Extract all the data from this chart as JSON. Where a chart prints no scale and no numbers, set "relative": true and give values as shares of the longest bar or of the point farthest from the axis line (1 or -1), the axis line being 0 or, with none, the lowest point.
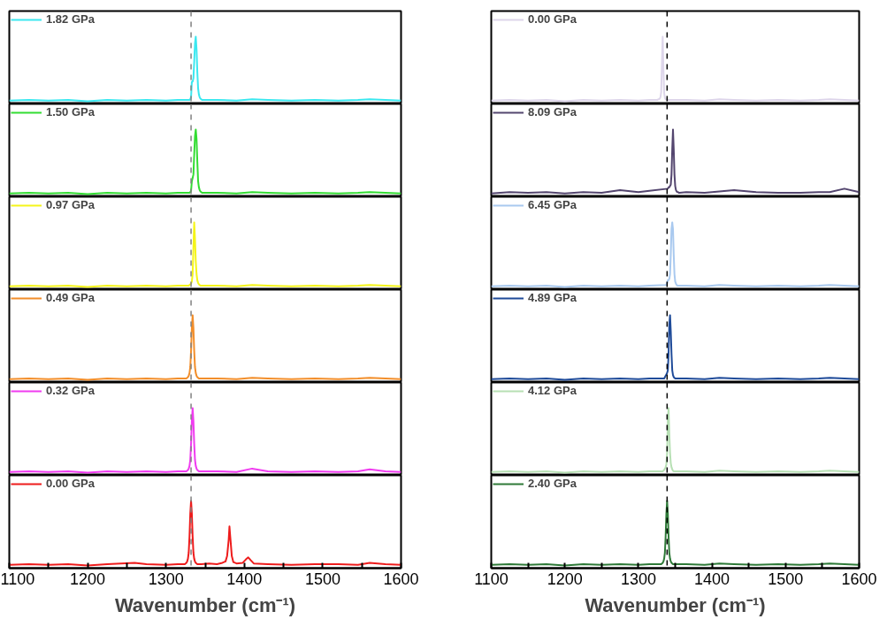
{
  "chart_data": [
    {
      "type": "line",
      "relative": true,
      "xlim": [
        1100,
        1600
      ],
      "tick_labels": false,
      "legend": "top left",
      "line_style": "solid",
      "ref_lines": [
        {
          "axis": "x",
          "value": 1332,
          "color": "#808080",
          "line_style": "dashed"
        }
      ],
      "x": [
        1100,
        1125,
        1150,
        1175,
        1200,
        1225,
        1250,
        1275,
        1300,
        1315,
        1330,
        1331,
        1332,
        1333,
        1334,
        1335,
        1336,
        1337,
        1338,
        1339,
        1340,
        1341,
        1342,
        1343,
        1344,
        1345,
        1346,
        1365,
        1390,
        1410,
        1430,
        1460,
        1490,
        1520,
        1545,
        1560,
        1580,
        1600
      ],
      "series": [
        {
          "name": "1.82 GPa",
          "color": "#3be8f0",
          "values": [
            0.05,
            0.06,
            0.05,
            0.06,
            0.04,
            0.06,
            0.05,
            0.06,
            0.05,
            0.06,
            0.06,
            0.07,
            0.1,
            0.33,
            0.33,
            0.38,
            0.62,
            0.9,
            1.0,
            0.81,
            0.47,
            0.23,
            0.14,
            0.1,
            0.08,
            0.07,
            0.06,
            0.06,
            0.05,
            0.07,
            0.06,
            0.05,
            0.06,
            0.05,
            0.06,
            0.07,
            0.06,
            0.05
          ]
        }
      ]
    },
    {
      "type": "line",
      "relative": true,
      "xlim": [
        1100,
        1600
      ],
      "tick_labels": false,
      "legend": "top left",
      "line_style": "solid",
      "ref_lines": [
        {
          "axis": "x",
          "value": 1332,
          "color": "#808080",
          "line_style": "dashed"
        }
      ],
      "x": [
        1100,
        1125,
        1150,
        1175,
        1200,
        1225,
        1250,
        1275,
        1300,
        1315,
        1330,
        1331,
        1332,
        1333,
        1334,
        1335,
        1336,
        1337,
        1338,
        1339,
        1340,
        1341,
        1342,
        1343,
        1344,
        1345,
        1346,
        1365,
        1390,
        1410,
        1430,
        1460,
        1490,
        1520,
        1545,
        1560,
        1580,
        1600
      ],
      "series": [
        {
          "name": "1.50 GPa",
          "color": "#33dd33",
          "values": [
            0.05,
            0.06,
            0.05,
            0.06,
            0.04,
            0.06,
            0.05,
            0.06,
            0.05,
            0.06,
            0.06,
            0.07,
            0.09,
            0.23,
            0.28,
            0.33,
            0.62,
            0.9,
            1.0,
            0.86,
            0.52,
            0.23,
            0.14,
            0.1,
            0.08,
            0.07,
            0.06,
            0.06,
            0.05,
            0.07,
            0.06,
            0.05,
            0.06,
            0.05,
            0.06,
            0.07,
            0.06,
            0.05
          ]
        }
      ]
    },
    {
      "type": "line",
      "relative": true,
      "xlim": [
        1100,
        1600
      ],
      "tick_labels": false,
      "legend": "top left",
      "line_style": "solid",
      "ref_lines": [
        {
          "axis": "x",
          "value": 1332,
          "color": "#808080",
          "line_style": "dashed"
        }
      ],
      "x": [
        1100,
        1125,
        1150,
        1175,
        1200,
        1225,
        1250,
        1275,
        1300,
        1315,
        1328,
        1329,
        1330,
        1331,
        1332,
        1333,
        1334,
        1335,
        1336,
        1337,
        1338,
        1339,
        1340,
        1341,
        1342,
        1343,
        1344,
        1365,
        1390,
        1410,
        1430,
        1460,
        1490,
        1520,
        1545,
        1560,
        1580,
        1600
      ],
      "series": [
        {
          "name": "0.97 GPa",
          "color": "#f5f51a",
          "values": [
            0.05,
            0.06,
            0.05,
            0.06,
            0.04,
            0.06,
            0.05,
            0.06,
            0.05,
            0.06,
            0.06,
            0.06,
            0.07,
            0.08,
            0.09,
            0.12,
            0.23,
            0.62,
            1.0,
            0.76,
            0.42,
            0.23,
            0.14,
            0.1,
            0.08,
            0.07,
            0.06,
            0.06,
            0.05,
            0.07,
            0.06,
            0.05,
            0.06,
            0.05,
            0.06,
            0.07,
            0.06,
            0.05
          ]
        }
      ]
    },
    {
      "type": "line",
      "relative": true,
      "xlim": [
        1100,
        1600
      ],
      "tick_labels": false,
      "legend": "top left",
      "line_style": "solid",
      "ref_lines": [
        {
          "axis": "x",
          "value": 1332,
          "color": "#808080",
          "line_style": "dashed"
        }
      ],
      "x": [
        1100,
        1125,
        1150,
        1175,
        1200,
        1225,
        1250,
        1275,
        1300,
        1315,
        1326,
        1327,
        1328,
        1329,
        1330,
        1331,
        1332,
        1333,
        1334,
        1335,
        1336,
        1337,
        1338,
        1339,
        1340,
        1341,
        1342,
        1365,
        1390,
        1410,
        1430,
        1460,
        1490,
        1520,
        1545,
        1560,
        1580,
        1600
      ],
      "series": [
        {
          "name": "0.49 GPa",
          "color": "#f28e2b",
          "values": [
            0.05,
            0.06,
            0.05,
            0.06,
            0.04,
            0.06,
            0.05,
            0.06,
            0.05,
            0.06,
            0.06,
            0.07,
            0.08,
            0.1,
            0.14,
            0.23,
            0.47,
            0.81,
            1.0,
            0.81,
            0.47,
            0.23,
            0.14,
            0.1,
            0.08,
            0.07,
            0.06,
            0.06,
            0.05,
            0.07,
            0.06,
            0.05,
            0.06,
            0.05,
            0.06,
            0.07,
            0.06,
            0.05
          ]
        }
      ]
    },
    {
      "type": "line",
      "relative": true,
      "xlim": [
        1100,
        1600
      ],
      "tick_labels": false,
      "legend": "top left",
      "line_style": "solid",
      "ref_lines": [
        {
          "axis": "x",
          "value": 1332,
          "color": "#808080",
          "line_style": "dashed"
        }
      ],
      "x": [
        1100,
        1125,
        1150,
        1175,
        1200,
        1225,
        1250,
        1275,
        1300,
        1315,
        1326,
        1327,
        1328,
        1329,
        1330,
        1331,
        1332,
        1333,
        1334,
        1335,
        1336,
        1337,
        1338,
        1339,
        1340,
        1341,
        1342,
        1365,
        1390,
        1410,
        1430,
        1460,
        1490,
        1520,
        1545,
        1560,
        1580,
        1600
      ],
      "series": [
        {
          "name": "0.32 GPa",
          "color": "#f03cf0",
          "values": [
            0.05,
            0.06,
            0.05,
            0.06,
            0.04,
            0.06,
            0.05,
            0.06,
            0.05,
            0.06,
            0.06,
            0.07,
            0.08,
            0.1,
            0.14,
            0.23,
            0.47,
            0.81,
            1.0,
            0.81,
            0.47,
            0.23,
            0.14,
            0.1,
            0.08,
            0.07,
            0.06,
            0.06,
            0.05,
            0.1,
            0.06,
            0.05,
            0.06,
            0.05,
            0.06,
            0.09,
            0.06,
            0.05
          ]
        }
      ]
    },
    {
      "type": "line",
      "relative": true,
      "xlim": [
        1100,
        1600
      ],
      "tick_labels": "x",
      "legend": "top left",
      "line_style": "solid",
      "xlabel": "Wavenumber (cm⁻¹)",
      "xticks": [
        1100,
        {
          "value": 1150,
          "label": null
        },
        1200,
        {
          "value": 1250,
          "label": null
        },
        1300,
        {
          "value": 1350,
          "label": null
        },
        1400,
        {
          "value": 1450,
          "label": null
        },
        1500,
        {
          "value": 1550,
          "label": null
        },
        1600
      ],
      "ref_lines": [
        {
          "axis": "x",
          "value": 1332,
          "color": "#808080",
          "line_style": "dashed"
        }
      ],
      "x": [
        1100,
        1125,
        1150,
        1175,
        1200,
        1225,
        1260,
        1275,
        1300,
        1315,
        1324,
        1325,
        1326,
        1327,
        1328,
        1329,
        1330,
        1331,
        1332,
        1333,
        1334,
        1335,
        1336,
        1337,
        1338,
        1339,
        1340,
        1345,
        1355,
        1365,
        1372,
        1376,
        1378,
        1380,
        1381,
        1382,
        1384,
        1386,
        1390,
        1398,
        1402,
        1405,
        1408,
        1412,
        1430,
        1460,
        1490,
        1520,
        1545,
        1560,
        1580,
        1600
      ],
      "series": [
        {
          "name": "0.00 GPa",
          "color": "#ee1c1c",
          "values": [
            0.05,
            0.06,
            0.05,
            0.06,
            0.04,
            0.06,
            0.08,
            0.06,
            0.05,
            0.06,
            0.06,
            0.07,
            0.08,
            0.1,
            0.14,
            0.23,
            0.47,
            0.81,
            1.0,
            0.81,
            0.47,
            0.23,
            0.14,
            0.1,
            0.08,
            0.07,
            0.06,
            0.06,
            0.07,
            0.06,
            0.08,
            0.1,
            0.18,
            0.42,
            0.62,
            0.47,
            0.18,
            0.09,
            0.07,
            0.08,
            0.13,
            0.16,
            0.12,
            0.07,
            0.06,
            0.05,
            0.06,
            0.06,
            0.05,
            0.08,
            0.06,
            0.05
          ]
        }
      ]
    },
    {
      "type": "line",
      "relative": true,
      "xlim": [
        1100,
        1600
      ],
      "tick_labels": false,
      "legend": "top left",
      "line_style": "solid",
      "ref_lines": [
        {
          "axis": "x",
          "value": 1339,
          "color": "#000000",
          "line_style": "dashed"
        }
      ],
      "x": [
        1100,
        1125,
        1150,
        1175,
        1200,
        1225,
        1250,
        1275,
        1300,
        1315,
        1325,
        1326,
        1327,
        1328,
        1329,
        1330,
        1331,
        1332,
        1333,
        1334,
        1335,
        1336,
        1337,
        1338,
        1339,
        1340,
        1341,
        1365,
        1390,
        1410,
        1430,
        1460,
        1490,
        1520,
        1545,
        1560,
        1580,
        1600
      ],
      "series": [
        {
          "name": "0.00 GPa",
          "color": "#ddd5ea",
          "values": [
            0.05,
            0.06,
            0.05,
            0.06,
            0.04,
            0.06,
            0.05,
            0.06,
            0.05,
            0.06,
            0.06,
            0.06,
            0.07,
            0.07,
            0.08,
            0.1,
            0.18,
            0.62,
            1.0,
            0.52,
            0.16,
            0.09,
            0.07,
            0.07,
            0.06,
            0.06,
            0.06,
            0.06,
            0.05,
            0.07,
            0.06,
            0.05,
            0.06,
            0.05,
            0.06,
            0.07,
            0.06,
            0.05
          ]
        }
      ]
    },
    {
      "type": "line",
      "relative": true,
      "xlim": [
        1100,
        1600
      ],
      "tick_labels": false,
      "legend": "top left",
      "line_style": "solid",
      "ref_lines": [
        {
          "axis": "x",
          "value": 1339,
          "color": "#000000",
          "line_style": "dashed"
        }
      ],
      "x": [
        1100,
        1125,
        1150,
        1175,
        1200,
        1225,
        1250,
        1275,
        1300,
        1315,
        1340,
        1341,
        1342,
        1343,
        1344,
        1345,
        1346,
        1347,
        1348,
        1349,
        1350,
        1351,
        1352,
        1353,
        1354,
        1355,
        1356,
        1365,
        1390,
        1410,
        1430,
        1460,
        1490,
        1520,
        1545,
        1560,
        1580,
        1600
      ],
      "series": [
        {
          "name": "8.09 GPa",
          "color": "#54466f",
          "values": [
            0.05,
            0.07,
            0.06,
            0.07,
            0.05,
            0.07,
            0.06,
            0.1,
            0.07,
            0.09,
            0.12,
            0.14,
            0.14,
            0.16,
            0.18,
            0.33,
            0.71,
            1.0,
            0.71,
            0.33,
            0.16,
            0.1,
            0.08,
            0.07,
            0.07,
            0.06,
            0.06,
            0.07,
            0.06,
            0.08,
            0.1,
            0.07,
            0.06,
            0.06,
            0.07,
            0.07,
            0.12,
            0.07
          ]
        }
      ]
    },
    {
      "type": "line",
      "relative": true,
      "xlim": [
        1100,
        1600
      ],
      "tick_labels": false,
      "legend": "top left",
      "line_style": "solid",
      "ref_lines": [
        {
          "axis": "x",
          "value": 1339,
          "color": "#000000",
          "line_style": "dashed"
        }
      ],
      "x": [
        1100,
        1125,
        1150,
        1175,
        1200,
        1225,
        1250,
        1275,
        1300,
        1315,
        1338,
        1339,
        1340,
        1341,
        1342,
        1343,
        1344,
        1345,
        1346,
        1347,
        1348,
        1349,
        1350,
        1351,
        1352,
        1353,
        1354,
        1365,
        1390,
        1410,
        1430,
        1460,
        1490,
        1520,
        1545,
        1560,
        1580,
        1600
      ],
      "series": [
        {
          "name": "6.45 GPa",
          "color": "#a9c9ef",
          "values": [
            0.05,
            0.06,
            0.05,
            0.06,
            0.04,
            0.06,
            0.05,
            0.06,
            0.05,
            0.06,
            0.07,
            0.1,
            0.14,
            0.14,
            0.16,
            0.23,
            0.52,
            0.9,
            1.0,
            0.9,
            0.52,
            0.23,
            0.12,
            0.09,
            0.07,
            0.06,
            0.06,
            0.06,
            0.05,
            0.07,
            0.06,
            0.05,
            0.06,
            0.05,
            0.06,
            0.07,
            0.06,
            0.05
          ]
        }
      ]
    },
    {
      "type": "line",
      "relative": true,
      "xlim": [
        1100,
        1600
      ],
      "tick_labels": false,
      "legend": "top left",
      "line_style": "solid",
      "ref_lines": [
        {
          "axis": "x",
          "value": 1339,
          "color": "#000000",
          "line_style": "dashed"
        }
      ],
      "x": [
        1100,
        1125,
        1150,
        1175,
        1200,
        1225,
        1250,
        1275,
        1300,
        1315,
        1335,
        1336,
        1337,
        1338,
        1339,
        1340,
        1341,
        1342,
        1343,
        1344,
        1345,
        1346,
        1347,
        1348,
        1349,
        1350,
        1351,
        1365,
        1390,
        1410,
        1430,
        1460,
        1490,
        1520,
        1545,
        1560,
        1580,
        1600
      ],
      "series": [
        {
          "name": "4.89 GPa",
          "color": "#1f4b99",
          "values": [
            0.05,
            0.06,
            0.05,
            0.06,
            0.04,
            0.06,
            0.05,
            0.06,
            0.05,
            0.06,
            0.06,
            0.08,
            0.1,
            0.12,
            0.14,
            0.18,
            0.42,
            0.86,
            1.0,
            0.76,
            0.42,
            0.18,
            0.11,
            0.08,
            0.07,
            0.06,
            0.06,
            0.06,
            0.05,
            0.07,
            0.06,
            0.05,
            0.06,
            0.05,
            0.06,
            0.07,
            0.06,
            0.05
          ]
        }
      ]
    },
    {
      "type": "line",
      "relative": true,
      "xlim": [
        1100,
        1600
      ],
      "tick_labels": false,
      "legend": "top left",
      "line_style": "solid",
      "ref_lines": [
        {
          "axis": "x",
          "value": 1339,
          "color": "#000000",
          "line_style": "dashed"
        }
      ],
      "x": [
        1100,
        1125,
        1150,
        1175,
        1200,
        1225,
        1250,
        1275,
        1300,
        1315,
        1333,
        1334,
        1335,
        1336,
        1337,
        1338,
        1339,
        1340,
        1341,
        1342,
        1343,
        1344,
        1345,
        1346,
        1347,
        1348,
        1349,
        1365,
        1390,
        1410,
        1430,
        1460,
        1490,
        1520,
        1545,
        1560,
        1580,
        1600
      ],
      "series": [
        {
          "name": "4.12 GPa",
          "color": "#b7e0b4",
          "values": [
            0.05,
            0.06,
            0.05,
            0.06,
            0.04,
            0.06,
            0.05,
            0.06,
            0.05,
            0.06,
            0.06,
            0.07,
            0.08,
            0.1,
            0.12,
            0.16,
            0.33,
            0.81,
            1.0,
            0.62,
            0.33,
            0.18,
            0.12,
            0.09,
            0.07,
            0.06,
            0.06,
            0.06,
            0.05,
            0.07,
            0.06,
            0.05,
            0.06,
            0.05,
            0.06,
            0.07,
            0.06,
            0.05
          ]
        }
      ]
    },
    {
      "type": "line",
      "relative": true,
      "xlim": [
        1100,
        1600
      ],
      "tick_labels": "x",
      "legend": "top left",
      "line_style": "solid",
      "xlabel": "Wavenumber (cm⁻¹)",
      "xticks": [
        1100,
        {
          "value": 1150,
          "label": null
        },
        1200,
        {
          "value": 1250,
          "label": null
        },
        1300,
        {
          "value": 1350,
          "label": null
        },
        1400,
        {
          "value": 1450,
          "label": null
        },
        1500,
        {
          "value": 1550,
          "label": null
        },
        1600
      ],
      "ref_lines": [
        {
          "axis": "x",
          "value": 1339,
          "color": "#000000",
          "line_style": "dashed"
        }
      ],
      "x": [
        1100,
        1125,
        1150,
        1175,
        1200,
        1225,
        1250,
        1275,
        1300,
        1315,
        1331,
        1332,
        1333,
        1334,
        1335,
        1336,
        1337,
        1338,
        1339,
        1340,
        1341,
        1342,
        1343,
        1344,
        1345,
        1346,
        1347,
        1365,
        1390,
        1410,
        1430,
        1460,
        1490,
        1520,
        1545,
        1560,
        1580,
        1600
      ],
      "series": [
        {
          "name": "2.40 GPa",
          "color": "#2e7a38",
          "values": [
            0.05,
            0.06,
            0.05,
            0.06,
            0.04,
            0.06,
            0.05,
            0.06,
            0.05,
            0.06,
            0.06,
            0.07,
            0.08,
            0.1,
            0.14,
            0.23,
            0.47,
            0.81,
            1.0,
            0.81,
            0.47,
            0.23,
            0.14,
            0.1,
            0.08,
            0.07,
            0.06,
            0.06,
            0.05,
            0.07,
            0.06,
            0.05,
            0.06,
            0.05,
            0.06,
            0.07,
            0.06,
            0.05
          ]
        }
      ]
    }
  ]
}
